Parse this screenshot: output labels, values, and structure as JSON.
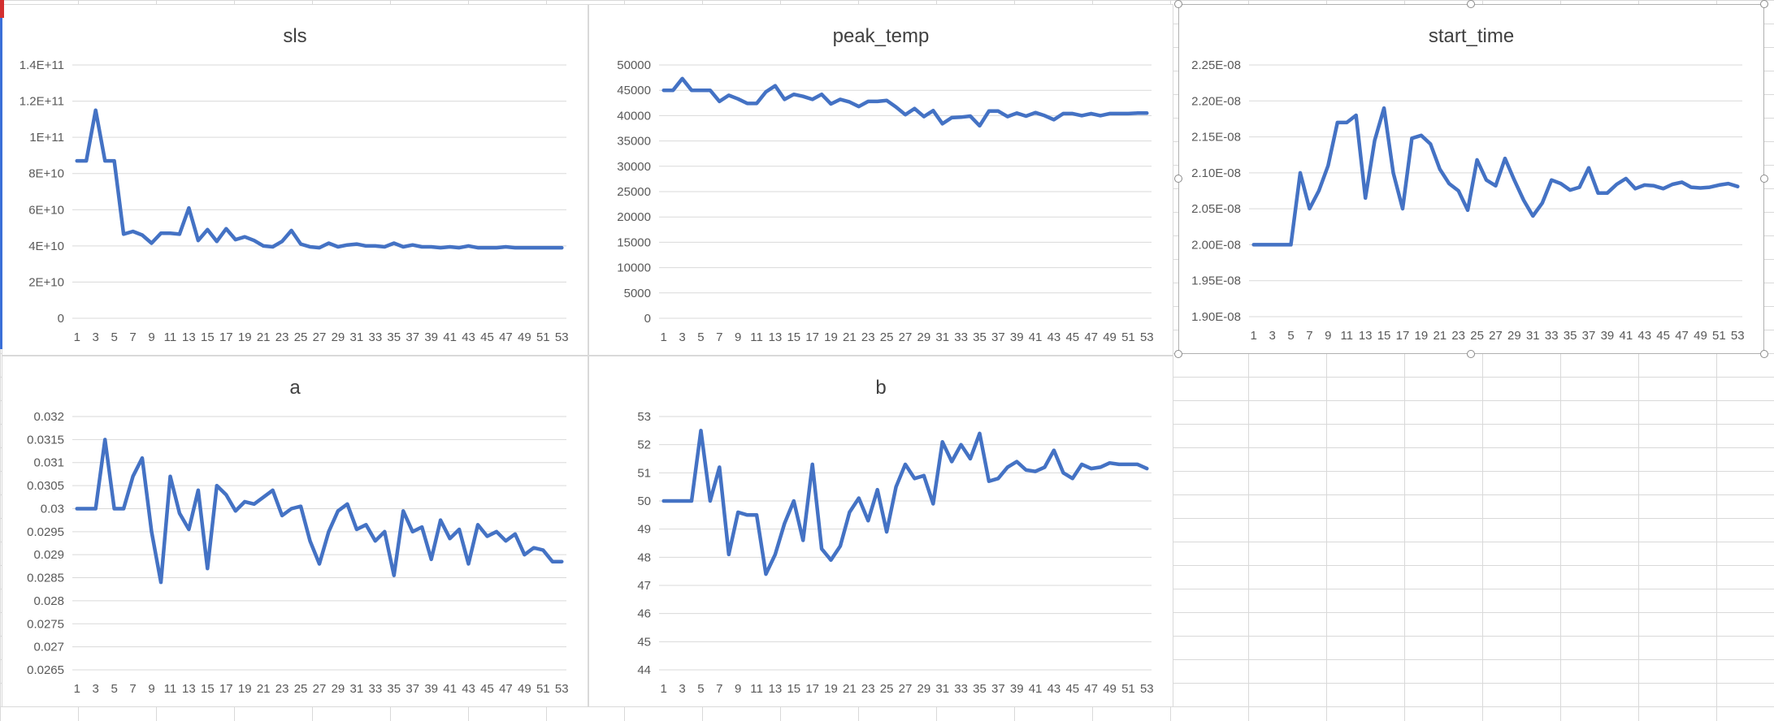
{
  "colors": {
    "line": "#4472c4",
    "grid": "#d9d9d9",
    "text": "#595959",
    "title": "#404040"
  },
  "chart_data": [
    {
      "type": "line",
      "title": "sls",
      "categories": [
        "1",
        "2",
        "3",
        "4",
        "5",
        "6",
        "7",
        "8",
        "9",
        "10",
        "11",
        "12",
        "13",
        "14",
        "15",
        "16",
        "17",
        "18",
        "19",
        "20",
        "21",
        "22",
        "23",
        "24",
        "25",
        "26",
        "27",
        "28",
        "29",
        "30",
        "31",
        "32",
        "33",
        "34",
        "35",
        "36",
        "37",
        "38",
        "39",
        "40",
        "41",
        "42",
        "43",
        "44",
        "45",
        "46",
        "47",
        "48",
        "49",
        "50",
        "51",
        "52",
        "53"
      ],
      "x_tick_labels": [
        "1",
        "3",
        "5",
        "7",
        "9",
        "11",
        "13",
        "15",
        "17",
        "19",
        "21",
        "23",
        "25",
        "27",
        "29",
        "31",
        "33",
        "35",
        "37",
        "39",
        "41",
        "43",
        "45",
        "47",
        "49",
        "51",
        "53"
      ],
      "y_ticks": [
        0,
        20000000000,
        40000000000,
        60000000000,
        80000000000,
        100000000000,
        120000000000,
        140000000000
      ],
      "y_tick_labels": [
        "0",
        "2E+10",
        "4E+10",
        "6E+10",
        "8E+10",
        "1E+11",
        "1.2E+11",
        "1.4E+11"
      ],
      "ylim": [
        0,
        140000000000
      ],
      "grid": true,
      "series": [
        {
          "values": [
            87000000000,
            87000000000,
            115000000000,
            87000000000,
            87000000000,
            46500000000,
            48000000000,
            46000000000,
            41500000000,
            47000000000,
            47000000000,
            46500000000,
            61000000000,
            43000000000,
            49000000000,
            42500000000,
            49500000000,
            43500000000,
            45000000000,
            43000000000,
            40000000000,
            39500000000,
            42500000000,
            48500000000,
            41000000000,
            39500000000,
            39000000000,
            41500000000,
            39500000000,
            40500000000,
            41000000000,
            40000000000,
            40000000000,
            39500000000,
            41500000000,
            39500000000,
            40500000000,
            39500000000,
            39500000000,
            39000000000,
            39500000000,
            39000000000,
            40000000000,
            39000000000,
            39000000000,
            39000000000,
            39500000000,
            39000000000,
            39000000000,
            39000000000,
            39000000000,
            39000000000,
            39000000000
          ]
        }
      ]
    },
    {
      "type": "line",
      "title": "peak_temp",
      "categories": [
        "1",
        "2",
        "3",
        "4",
        "5",
        "6",
        "7",
        "8",
        "9",
        "10",
        "11",
        "12",
        "13",
        "14",
        "15",
        "16",
        "17",
        "18",
        "19",
        "20",
        "21",
        "22",
        "23",
        "24",
        "25",
        "26",
        "27",
        "28",
        "29",
        "30",
        "31",
        "32",
        "33",
        "34",
        "35",
        "36",
        "37",
        "38",
        "39",
        "40",
        "41",
        "42",
        "43",
        "44",
        "45",
        "46",
        "47",
        "48",
        "49",
        "50",
        "51",
        "52",
        "53"
      ],
      "x_tick_labels": [
        "1",
        "3",
        "5",
        "7",
        "9",
        "11",
        "13",
        "15",
        "17",
        "19",
        "21",
        "23",
        "25",
        "27",
        "29",
        "31",
        "33",
        "35",
        "37",
        "39",
        "41",
        "43",
        "45",
        "47",
        "49",
        "51",
        "53"
      ],
      "y_ticks": [
        0,
        5000,
        10000,
        15000,
        20000,
        25000,
        30000,
        35000,
        40000,
        45000,
        50000
      ],
      "y_tick_labels": [
        "0",
        "5000",
        "10000",
        "15000",
        "20000",
        "25000",
        "30000",
        "35000",
        "40000",
        "45000",
        "50000"
      ],
      "ylim": [
        0,
        50000
      ],
      "grid": true,
      "series": [
        {
          "values": [
            45000,
            45000,
            47300,
            45000,
            45000,
            45000,
            42800,
            44000,
            43300,
            42400,
            42400,
            44700,
            45900,
            43200,
            44200,
            43800,
            43200,
            44200,
            42300,
            43200,
            42700,
            41800,
            42800,
            42800,
            43000,
            41700,
            40200,
            41400,
            39800,
            41000,
            38400,
            39600,
            39700,
            39900,
            38000,
            40900,
            40900,
            39800,
            40500,
            39900,
            40600,
            40000,
            39200,
            40400,
            40400,
            40000,
            40400,
            40000,
            40400,
            40400,
            40400,
            40500,
            40500
          ]
        }
      ]
    },
    {
      "type": "line",
      "title": "start_time",
      "categories": [
        "1",
        "2",
        "3",
        "4",
        "5",
        "6",
        "7",
        "8",
        "9",
        "10",
        "11",
        "12",
        "13",
        "14",
        "15",
        "16",
        "17",
        "18",
        "19",
        "20",
        "21",
        "22",
        "23",
        "24",
        "25",
        "26",
        "27",
        "28",
        "29",
        "30",
        "31",
        "32",
        "33",
        "34",
        "35",
        "36",
        "37",
        "38",
        "39",
        "40",
        "41",
        "42",
        "43",
        "44",
        "45",
        "46",
        "47",
        "48",
        "49",
        "50",
        "51",
        "52",
        "53"
      ],
      "x_tick_labels": [
        "1",
        "3",
        "5",
        "7",
        "9",
        "11",
        "13",
        "15",
        "17",
        "19",
        "21",
        "23",
        "25",
        "27",
        "29",
        "31",
        "33",
        "35",
        "37",
        "39",
        "41",
        "43",
        "45",
        "47",
        "49",
        "51",
        "53"
      ],
      "y_ticks": [
        1.9e-08,
        1.95e-08,
        2e-08,
        2.05e-08,
        2.1e-08,
        2.15e-08,
        2.2e-08,
        2.25e-08
      ],
      "y_tick_labels": [
        "1.90E-08",
        "1.95E-08",
        "2.00E-08",
        "2.05E-08",
        "2.10E-08",
        "2.15E-08",
        "2.20E-08",
        "2.25E-08"
      ],
      "ylim": [
        1.9e-08,
        2.25e-08
      ],
      "grid": true,
      "series": [
        {
          "values": [
            2e-08,
            2e-08,
            2e-08,
            2e-08,
            2e-08,
            2.1e-08,
            2.05e-08,
            2.075e-08,
            2.11e-08,
            2.17e-08,
            2.17e-08,
            2.18e-08,
            2.065e-08,
            2.145e-08,
            2.19e-08,
            2.1e-08,
            2.05e-08,
            2.148e-08,
            2.152e-08,
            2.14e-08,
            2.105e-08,
            2.085e-08,
            2.075e-08,
            2.048e-08,
            2.118e-08,
            2.09e-08,
            2.082e-08,
            2.12e-08,
            2.09e-08,
            2.062e-08,
            2.04e-08,
            2.058e-08,
            2.09e-08,
            2.085e-08,
            2.076e-08,
            2.08e-08,
            2.107e-08,
            2.072e-08,
            2.072e-08,
            2.084e-08,
            2.092e-08,
            2.078e-08,
            2.083e-08,
            2.082e-08,
            2.078e-08,
            2.084e-08,
            2.087e-08,
            2.08e-08,
            2.079e-08,
            2.08e-08,
            2.083e-08,
            2.085e-08,
            2.081e-08
          ]
        }
      ]
    },
    {
      "type": "line",
      "title": "a",
      "categories": [
        "1",
        "2",
        "3",
        "4",
        "5",
        "6",
        "7",
        "8",
        "9",
        "10",
        "11",
        "12",
        "13",
        "14",
        "15",
        "16",
        "17",
        "18",
        "19",
        "20",
        "21",
        "22",
        "23",
        "24",
        "25",
        "26",
        "27",
        "28",
        "29",
        "30",
        "31",
        "32",
        "33",
        "34",
        "35",
        "36",
        "37",
        "38",
        "39",
        "40",
        "41",
        "42",
        "43",
        "44",
        "45",
        "46",
        "47",
        "48",
        "49",
        "50",
        "51",
        "52",
        "53"
      ],
      "x_tick_labels": [
        "1",
        "3",
        "5",
        "7",
        "9",
        "11",
        "13",
        "15",
        "17",
        "19",
        "21",
        "23",
        "25",
        "27",
        "29",
        "31",
        "33",
        "35",
        "37",
        "39",
        "41",
        "43",
        "45",
        "47",
        "49",
        "51",
        "53"
      ],
      "y_ticks": [
        0.0265,
        0.027,
        0.0275,
        0.028,
        0.0285,
        0.029,
        0.0295,
        0.03,
        0.0305,
        0.031,
        0.0315,
        0.032
      ],
      "y_tick_labels": [
        "0.0265",
        "0.027",
        "0.0275",
        "0.028",
        "0.0285",
        "0.029",
        "0.0295",
        "0.03",
        "0.0305",
        "0.031",
        "0.0315",
        "0.032"
      ],
      "ylim": [
        0.0265,
        0.032
      ],
      "grid": true,
      "series": [
        {
          "values": [
            0.03,
            0.03,
            0.03,
            0.0315,
            0.03,
            0.03,
            0.0307,
            0.0311,
            0.0295,
            0.0284,
            0.0307,
            0.0299,
            0.02955,
            0.0304,
            0.0287,
            0.0305,
            0.0303,
            0.02995,
            0.03015,
            0.0301,
            0.03025,
            0.0304,
            0.02985,
            0.03,
            0.03005,
            0.0293,
            0.0288,
            0.0295,
            0.02995,
            0.0301,
            0.02955,
            0.02965,
            0.0293,
            0.0295,
            0.02855,
            0.02995,
            0.0295,
            0.0296,
            0.0289,
            0.02975,
            0.02935,
            0.02955,
            0.0288,
            0.02965,
            0.0294,
            0.0295,
            0.0293,
            0.02945,
            0.029,
            0.02915,
            0.0291,
            0.02885,
            0.02885
          ]
        }
      ]
    },
    {
      "type": "line",
      "title": "b",
      "categories": [
        "1",
        "2",
        "3",
        "4",
        "5",
        "6",
        "7",
        "8",
        "9",
        "10",
        "11",
        "12",
        "13",
        "14",
        "15",
        "16",
        "17",
        "18",
        "19",
        "20",
        "21",
        "22",
        "23",
        "24",
        "25",
        "26",
        "27",
        "28",
        "29",
        "30",
        "31",
        "32",
        "33",
        "34",
        "35",
        "36",
        "37",
        "38",
        "39",
        "40",
        "41",
        "42",
        "43",
        "44",
        "45",
        "46",
        "47",
        "48",
        "49",
        "50",
        "51",
        "52",
        "53"
      ],
      "x_tick_labels": [
        "1",
        "3",
        "5",
        "7",
        "9",
        "11",
        "13",
        "15",
        "17",
        "19",
        "21",
        "23",
        "25",
        "27",
        "29",
        "31",
        "33",
        "35",
        "37",
        "39",
        "41",
        "43",
        "45",
        "47",
        "49",
        "51",
        "53"
      ],
      "y_ticks": [
        44,
        45,
        46,
        47,
        48,
        49,
        50,
        51,
        52,
        53
      ],
      "y_tick_labels": [
        "44",
        "45",
        "46",
        "47",
        "48",
        "49",
        "50",
        "51",
        "52",
        "53"
      ],
      "ylim": [
        44,
        53
      ],
      "grid": true,
      "series": [
        {
          "values": [
            50,
            50,
            50,
            50,
            52.5,
            50,
            51.2,
            48.1,
            49.6,
            49.5,
            49.5,
            47.4,
            48.1,
            49.2,
            50,
            48.6,
            51.3,
            48.3,
            47.9,
            48.4,
            49.6,
            50.1,
            49.3,
            50.4,
            48.9,
            50.5,
            51.3,
            50.8,
            50.9,
            49.9,
            52.1,
            51.4,
            52,
            51.5,
            52.4,
            50.7,
            50.8,
            51.2,
            51.4,
            51.1,
            51.05,
            51.2,
            51.8,
            51,
            50.8,
            51.3,
            51.15,
            51.2,
            51.35,
            51.3,
            51.3,
            51.3,
            51.15
          ]
        }
      ]
    }
  ]
}
